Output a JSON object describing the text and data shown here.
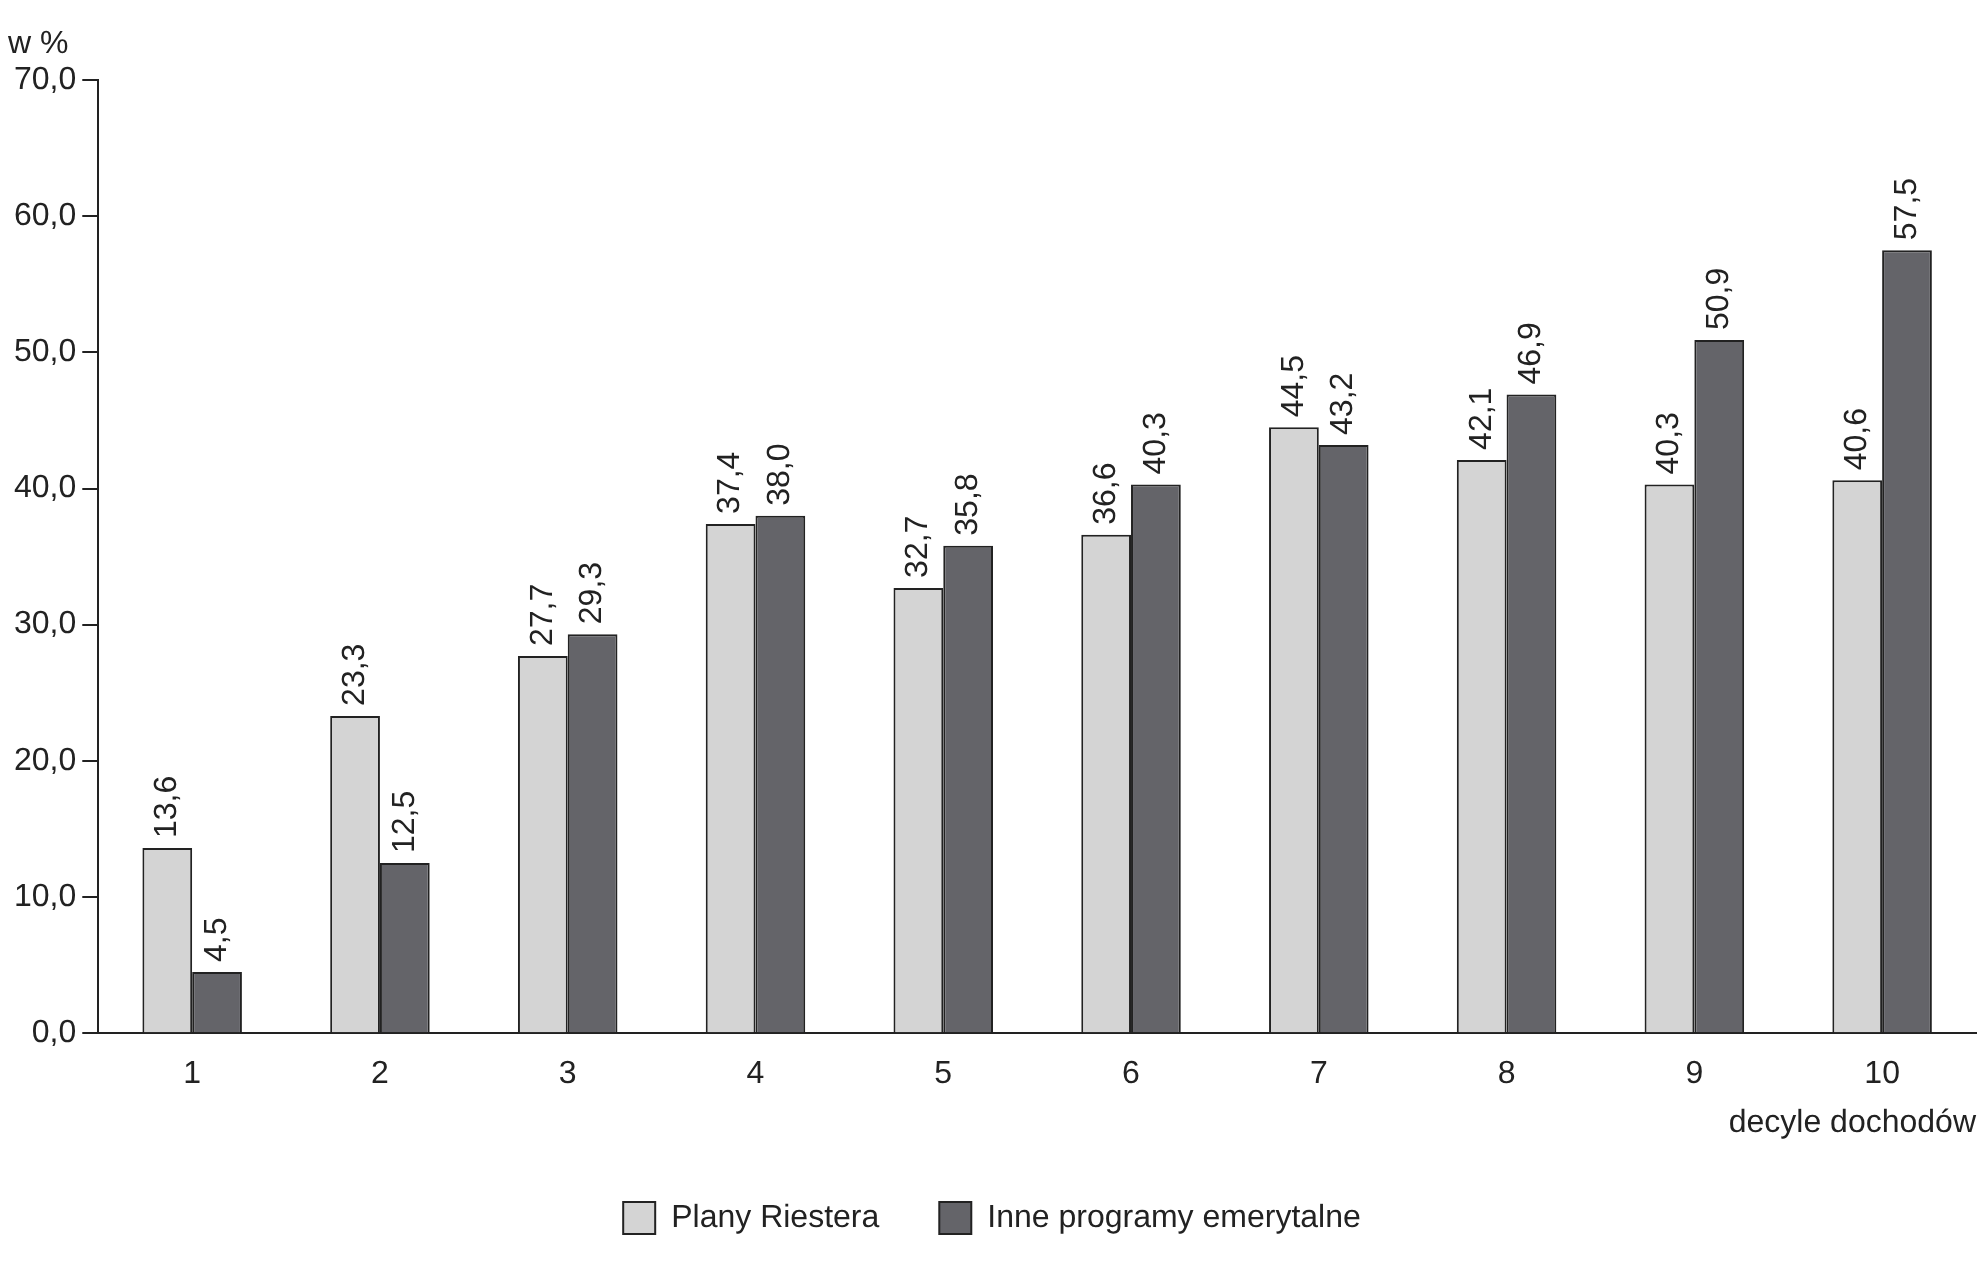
{
  "chart_data": {
    "type": "bar",
    "ylabel": "w %",
    "xlabel": "decyle dochodów",
    "categories": [
      "1",
      "2",
      "3",
      "4",
      "5",
      "6",
      "7",
      "8",
      "9",
      "10"
    ],
    "series": [
      {
        "name": "Plany Riestera",
        "color": "#d4d4d4",
        "values": [
          13.6,
          23.3,
          27.7,
          37.4,
          32.7,
          36.6,
          44.5,
          42.1,
          40.3,
          40.6
        ],
        "value_labels": [
          "13,6",
          "23,3",
          "27,7",
          "37,4",
          "32,7",
          "36,6",
          "44,5",
          "42,1",
          "40,3",
          "40,6"
        ]
      },
      {
        "name": "Inne programy emerytalne",
        "color": "#646469",
        "values": [
          4.5,
          12.5,
          29.3,
          38.0,
          35.8,
          40.3,
          43.2,
          46.9,
          50.9,
          57.5
        ],
        "value_labels": [
          "4,5",
          "12,5",
          "29,3",
          "38,0",
          "35,8",
          "40,3",
          "43,2",
          "46,9",
          "50,9",
          "57,5"
        ]
      }
    ],
    "ylim": [
      0,
      70
    ],
    "yticks": [
      {
        "value": 0,
        "label": "0,0"
      },
      {
        "value": 10,
        "label": "10,0"
      },
      {
        "value": 20,
        "label": "20,0"
      },
      {
        "value": 30,
        "label": "30,0"
      },
      {
        "value": 40,
        "label": "40,0"
      },
      {
        "value": 50,
        "label": "50,0"
      },
      {
        "value": 60,
        "label": "60,0"
      },
      {
        "value": 70,
        "label": "70,0"
      }
    ],
    "grid": false,
    "legend": "bottom"
  }
}
